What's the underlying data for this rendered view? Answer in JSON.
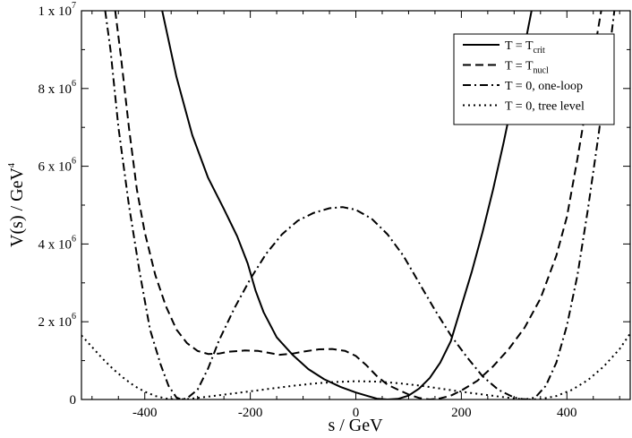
{
  "chart_data": {
    "type": "line",
    "xlabel": "s / GeV",
    "ylabel": "V(s) / GeV",
    "ylabel_sup": "4",
    "xlim": [
      -520,
      520
    ],
    "ylim": [
      0,
      10000000
    ],
    "grid": false,
    "legend_position": "top-right",
    "x_ticks": [
      {
        "value": -400,
        "label": "-400"
      },
      {
        "value": -200,
        "label": "-200"
      },
      {
        "value": 0,
        "label": "0"
      },
      {
        "value": 200,
        "label": "200"
      },
      {
        "value": 400,
        "label": "400"
      }
    ],
    "y_ticks": [
      {
        "value": 0,
        "base": "0",
        "exp": ""
      },
      {
        "value": 2000000,
        "base": "2 x 10",
        "exp": "6"
      },
      {
        "value": 4000000,
        "base": "4 x 10",
        "exp": "6"
      },
      {
        "value": 6000000,
        "base": "6 x 10",
        "exp": "6"
      },
      {
        "value": 8000000,
        "base": "8 x 10",
        "exp": "6"
      },
      {
        "value": 10000000,
        "base": "1 x 10",
        "exp": "7"
      }
    ],
    "series": [
      {
        "name": "T = T",
        "name_sub": "crit",
        "dash": "solid",
        "points": [
          [
            -367,
            10000000
          ],
          [
            -340,
            8300000
          ],
          [
            -310,
            6800000
          ],
          [
            -280,
            5700000
          ],
          [
            -250,
            4900000
          ],
          [
            -225,
            4200000
          ],
          [
            -205,
            3500000
          ],
          [
            -190,
            2800000
          ],
          [
            -175,
            2250000
          ],
          [
            -150,
            1600000
          ],
          [
            -120,
            1150000
          ],
          [
            -90,
            780000
          ],
          [
            -60,
            520000
          ],
          [
            -30,
            330000
          ],
          [
            0,
            180000
          ],
          [
            20,
            100000
          ],
          [
            40,
            20000
          ],
          [
            60,
            0
          ],
          [
            80,
            15000
          ],
          [
            100,
            100000
          ],
          [
            120,
            280000
          ],
          [
            140,
            550000
          ],
          [
            160,
            950000
          ],
          [
            180,
            1500000
          ],
          [
            200,
            2400000
          ],
          [
            220,
            3300000
          ],
          [
            240,
            4300000
          ],
          [
            260,
            5400000
          ],
          [
            280,
            6600000
          ],
          [
            300,
            7900000
          ],
          [
            320,
            9100000
          ],
          [
            333,
            10000000
          ]
        ]
      },
      {
        "name": "T = T",
        "name_sub": "nucl",
        "dash": "dashed",
        "points": [
          [
            -456,
            10000000
          ],
          [
            -445,
            8800000
          ],
          [
            -430,
            7000000
          ],
          [
            -415,
            5400000
          ],
          [
            -400,
            4300000
          ],
          [
            -380,
            3200000
          ],
          [
            -360,
            2400000
          ],
          [
            -340,
            1800000
          ],
          [
            -320,
            1450000
          ],
          [
            -300,
            1250000
          ],
          [
            -280,
            1170000
          ],
          [
            -260,
            1180000
          ],
          [
            -240,
            1230000
          ],
          [
            -210,
            1260000
          ],
          [
            -185,
            1250000
          ],
          [
            -165,
            1200000
          ],
          [
            -145,
            1150000
          ],
          [
            -120,
            1180000
          ],
          [
            -100,
            1230000
          ],
          [
            -70,
            1290000
          ],
          [
            -45,
            1300000
          ],
          [
            -20,
            1250000
          ],
          [
            0,
            1120000
          ],
          [
            20,
            880000
          ],
          [
            40,
            600000
          ],
          [
            60,
            380000
          ],
          [
            80,
            250000
          ],
          [
            100,
            130000
          ],
          [
            120,
            40000
          ],
          [
            140,
            0
          ],
          [
            160,
            30000
          ],
          [
            180,
            100000
          ],
          [
            200,
            230000
          ],
          [
            230,
            480000
          ],
          [
            260,
            850000
          ],
          [
            290,
            1300000
          ],
          [
            320,
            1850000
          ],
          [
            350,
            2600000
          ],
          [
            380,
            3700000
          ],
          [
            400,
            4700000
          ],
          [
            420,
            6200000
          ],
          [
            440,
            7800000
          ],
          [
            455,
            9200000
          ],
          [
            465,
            10000000
          ]
        ]
      },
      {
        "name": "T = 0, one-loop",
        "name_sub": "",
        "dash": "dashdot",
        "points": [
          [
            -475,
            10000000
          ],
          [
            -465,
            9000000
          ],
          [
            -450,
            7000000
          ],
          [
            -430,
            5000000
          ],
          [
            -410,
            3300000
          ],
          [
            -390,
            1800000
          ],
          [
            -370,
            900000
          ],
          [
            -355,
            350000
          ],
          [
            -340,
            50000
          ],
          [
            -330,
            0
          ],
          [
            -320,
            30000
          ],
          [
            -300,
            250000
          ],
          [
            -280,
            800000
          ],
          [
            -260,
            1500000
          ],
          [
            -230,
            2350000
          ],
          [
            -200,
            3100000
          ],
          [
            -170,
            3750000
          ],
          [
            -140,
            4250000
          ],
          [
            -110,
            4600000
          ],
          [
            -80,
            4800000
          ],
          [
            -50,
            4920000
          ],
          [
            -25,
            4950000
          ],
          [
            0,
            4880000
          ],
          [
            30,
            4650000
          ],
          [
            60,
            4250000
          ],
          [
            90,
            3700000
          ],
          [
            120,
            3000000
          ],
          [
            150,
            2300000
          ],
          [
            180,
            1650000
          ],
          [
            210,
            1100000
          ],
          [
            240,
            600000
          ],
          [
            270,
            250000
          ],
          [
            300,
            50000
          ],
          [
            320,
            0
          ],
          [
            340,
            50000
          ],
          [
            360,
            350000
          ],
          [
            380,
            950000
          ],
          [
            400,
            1900000
          ],
          [
            420,
            3200000
          ],
          [
            440,
            4900000
          ],
          [
            460,
            6800000
          ],
          [
            480,
            8900000
          ],
          [
            490,
            10000000
          ]
        ]
      },
      {
        "name": "T = 0, tree level",
        "name_sub": "",
        "dash": "dotted",
        "points": [
          [
            -520,
            1650000
          ],
          [
            -500,
            1350000
          ],
          [
            -480,
            1050000
          ],
          [
            -460,
            780000
          ],
          [
            -440,
            550000
          ],
          [
            -420,
            350000
          ],
          [
            -400,
            200000
          ],
          [
            -380,
            90000
          ],
          [
            -360,
            25000
          ],
          [
            -340,
            0
          ],
          [
            -320,
            10000
          ],
          [
            -300,
            40000
          ],
          [
            -270,
            90000
          ],
          [
            -240,
            140000
          ],
          [
            -200,
            210000
          ],
          [
            -160,
            280000
          ],
          [
            -120,
            350000
          ],
          [
            -80,
            410000
          ],
          [
            -40,
            450000
          ],
          [
            0,
            470000
          ],
          [
            40,
            460000
          ],
          [
            80,
            420000
          ],
          [
            120,
            360000
          ],
          [
            160,
            280000
          ],
          [
            200,
            200000
          ],
          [
            240,
            130000
          ],
          [
            280,
            60000
          ],
          [
            310,
            15000
          ],
          [
            330,
            0
          ],
          [
            350,
            10000
          ],
          [
            380,
            90000
          ],
          [
            410,
            250000
          ],
          [
            440,
            500000
          ],
          [
            470,
            850000
          ],
          [
            500,
            1300000
          ],
          [
            520,
            1700000
          ]
        ]
      }
    ]
  }
}
